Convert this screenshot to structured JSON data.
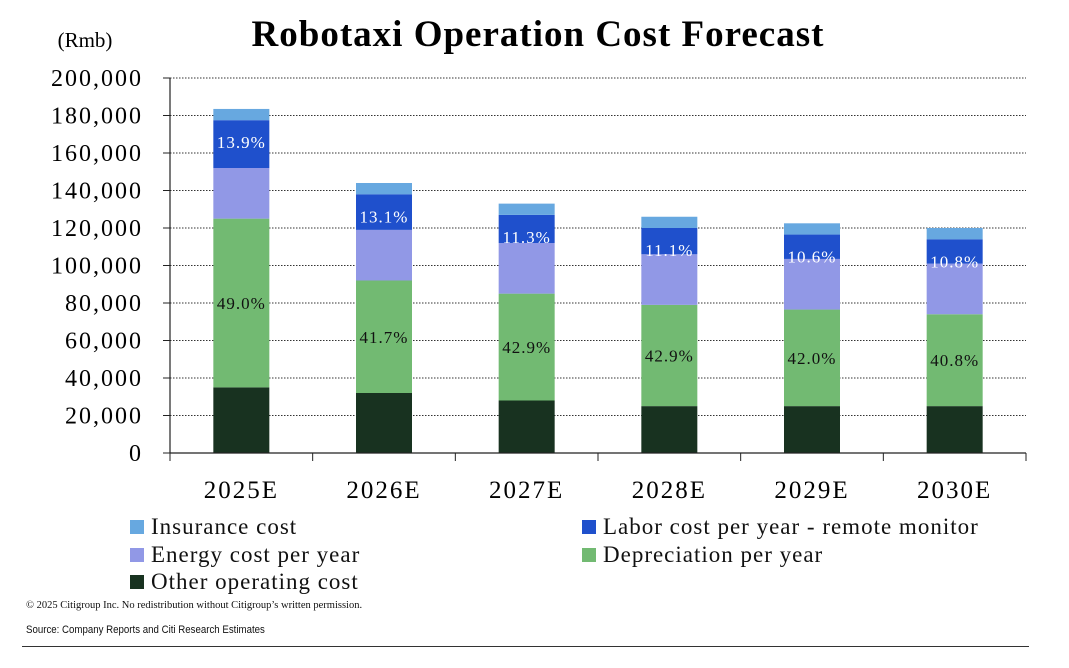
{
  "chart_data": {
    "type": "bar",
    "stacked": true,
    "title": "Robotaxi Operation Cost Forecast",
    "unit_label": "(Rmb)",
    "categories": [
      "2025E",
      "2026E",
      "2027E",
      "2028E",
      "2029E",
      "2030E"
    ],
    "ylim": [
      0,
      200000
    ],
    "yticks": [
      "0",
      "20,000",
      "40,000",
      "60,000",
      "80,000",
      "100,000",
      "120,000",
      "140,000",
      "160,000",
      "180,000",
      "200,000"
    ],
    "grid": true,
    "series": [
      {
        "name": "Other operating cost",
        "color": "#183220",
        "values": [
          35000,
          32000,
          28000,
          25000,
          25000,
          25000
        ]
      },
      {
        "name": "Depreciation per year",
        "color": "#72ba72",
        "values": [
          90000,
          60000,
          57000,
          54000,
          51500,
          49000
        ],
        "labels": [
          "49.0%",
          "41.7%",
          "42.9%",
          "42.9%",
          "42.0%",
          "40.8%"
        ]
      },
      {
        "name": "Energy cost per year",
        "color": "#9198e6",
        "values": [
          27000,
          27000,
          27000,
          27000,
          27000,
          27000
        ]
      },
      {
        "name": "Labor cost per year - remote monitor",
        "color": "#1f50cc",
        "values": [
          25500,
          19000,
          15000,
          14000,
          13000,
          13000
        ],
        "labels": [
          "13.9%",
          "13.1%",
          "11.3%",
          "11.1%",
          "10.6%",
          "10.8%"
        ]
      },
      {
        "name": "Insurance cost",
        "color": "#67a8e0",
        "values": [
          6000,
          6000,
          6000,
          6000,
          6000,
          6000
        ]
      }
    ]
  },
  "legend_order": [
    {
      "name": "Insurance cost",
      "color": "#67a8e0"
    },
    {
      "name": "Labor cost per year - remote monitor",
      "color": "#1f50cc"
    },
    {
      "name": "Energy cost per year",
      "color": "#9198e6"
    },
    {
      "name": "Depreciation per year",
      "color": "#72ba72"
    },
    {
      "name": "Other operating cost",
      "color": "#183220"
    }
  ],
  "footer": {
    "copyright": "© 2025 Citigroup Inc. No redistribution without Citigroup’s written permission.",
    "source": "Source: Company Reports and Citi Research Estimates"
  }
}
